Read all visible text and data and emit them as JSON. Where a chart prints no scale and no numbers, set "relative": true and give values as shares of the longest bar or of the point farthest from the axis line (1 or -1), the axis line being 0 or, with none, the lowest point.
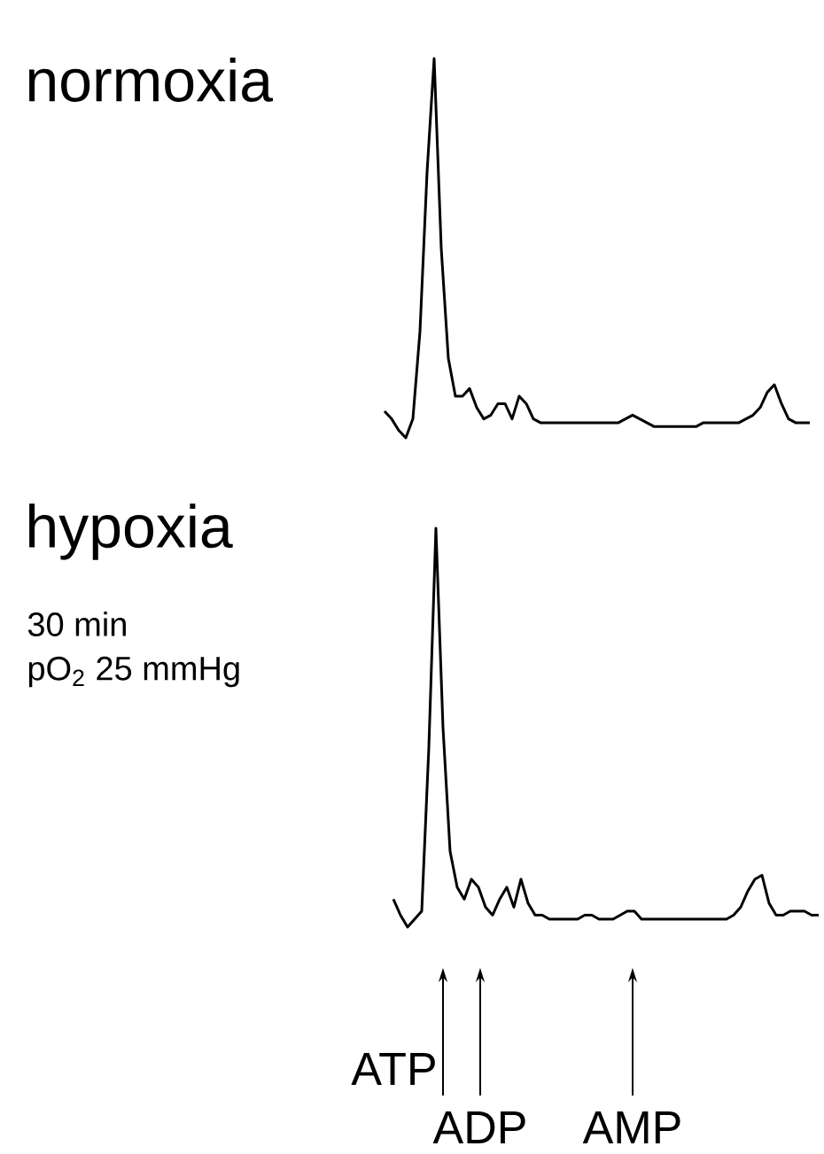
{
  "chart_data": [
    {
      "type": "line",
      "title": "normoxia",
      "relative": true,
      "tick_labels": false,
      "categories": [
        null,
        null,
        null,
        null,
        null,
        null,
        null,
        null,
        null,
        null,
        null,
        null,
        null,
        null,
        null,
        null,
        null,
        null,
        null,
        null,
        null,
        null,
        null,
        null,
        null,
        null,
        null,
        null,
        null,
        null,
        null,
        null,
        null,
        null,
        null,
        null,
        null,
        null,
        null,
        null,
        null,
        null,
        null,
        null,
        null,
        null,
        null,
        null,
        null,
        null,
        null,
        null,
        null,
        null,
        null,
        null,
        null,
        null,
        null,
        null,
        null
      ],
      "series": [
        {
          "color": "#000000",
          "values": [
            0.07,
            0.05,
            0.02,
            0,
            0.05,
            0.28,
            0.7,
            1,
            0.5,
            0.21,
            0.11,
            0.11,
            0.13,
            0.08,
            0.05,
            0.06,
            0.09,
            0.09,
            0.05,
            0.11,
            0.09,
            0.05,
            0.04,
            0.04,
            0.04,
            0.04,
            0.04,
            0.04,
            0.04,
            0.04,
            0.04,
            0.04,
            0.04,
            0.04,
            0.05,
            0.06,
            0.05,
            0.04,
            0.03,
            0.03,
            0.03,
            0.03,
            0.03,
            0.03,
            0.03,
            0.04,
            0.04,
            0.04,
            0.04,
            0.04,
            0.04,
            0.05,
            0.06,
            0.08,
            0.12,
            0.14,
            0.09,
            0.05,
            0.04,
            0.04,
            0.04
          ]
        }
      ]
    },
    {
      "type": "line",
      "title": "hypoxia",
      "relative": true,
      "tick_labels": false,
      "categories": [
        null,
        null,
        null,
        null,
        null,
        null,
        null,
        null,
        null,
        null,
        null,
        null,
        null,
        null,
        null,
        null,
        null,
        null,
        null,
        null,
        null,
        null,
        null,
        null,
        null,
        null,
        null,
        null,
        null,
        null,
        null,
        null,
        null,
        null,
        null,
        null,
        null,
        null,
        null,
        null,
        null,
        null,
        null,
        null,
        null,
        null,
        null,
        null,
        null,
        null,
        null,
        null,
        null,
        null,
        null,
        null,
        null,
        null,
        null,
        null,
        null
      ],
      "series": [
        {
          "color": "#000000",
          "values": [
            0.07,
            0.03,
            0,
            0.02,
            0.04,
            0.45,
            1,
            0.5,
            0.19,
            0.1,
            0.07,
            0.12,
            0.1,
            0.05,
            0.03,
            0.07,
            0.1,
            0.05,
            0.12,
            0.06,
            0.03,
            0.03,
            0.02,
            0.02,
            0.02,
            0.02,
            0.02,
            0.03,
            0.03,
            0.02,
            0.02,
            0.02,
            0.03,
            0.04,
            0.04,
            0.02,
            0.02,
            0.02,
            0.02,
            0.02,
            0.02,
            0.02,
            0.02,
            0.02,
            0.02,
            0.02,
            0.02,
            0.02,
            0.03,
            0.05,
            0.09,
            0.12,
            0.13,
            0.06,
            0.03,
            0.03,
            0.04,
            0.04,
            0.04,
            0.03,
            0.03
          ]
        }
      ],
      "annotations": [
        "30 min",
        "pO$_{2}$ 25 mmHg",
        {
          "text": "ATP"
        },
        {
          "text": "ADP"
        },
        {
          "text": "AMP"
        }
      ]
    }
  ]
}
